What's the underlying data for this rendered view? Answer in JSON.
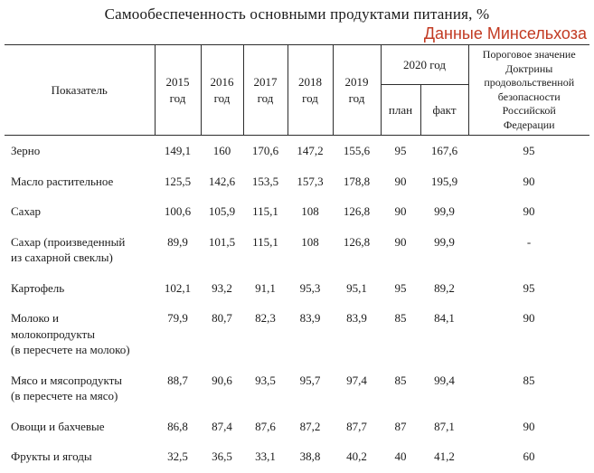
{
  "colors": {
    "source_note_text": "#c23a22",
    "body_text": "#1b1b1b",
    "table_border": "#2d2d2d",
    "background": "#ffffff"
  },
  "chart_data": {
    "type": "table",
    "title": "Самообеспеченность основными продуктами питания, %",
    "source_note": "Данные Минсельхоза",
    "header": {
      "indicator": "Показатель",
      "years": [
        "2015\nгод",
        "2016\nгод",
        "2017\nгод",
        "2018\nгод",
        "2019\nгод"
      ],
      "group_2020": {
        "label": "2020 год",
        "plan": "план",
        "fact": "факт"
      },
      "threshold": "Пороговое значение\nДоктрины\nпродовольственной\nбезопасности\nРоссийской\nФедерации"
    },
    "rows": [
      {
        "label": "Зерно",
        "values": [
          "149,1",
          "160",
          "170,6",
          "147,2",
          "155,6",
          "95",
          "167,6",
          "95"
        ]
      },
      {
        "label": "Масло растительное",
        "values": [
          "125,5",
          "142,6",
          "153,5",
          "157,3",
          "178,8",
          "90",
          "195,9",
          "90"
        ]
      },
      {
        "label": "Сахар",
        "values": [
          "100,6",
          "105,9",
          "115,1",
          "108",
          "126,8",
          "90",
          "99,9",
          "90"
        ]
      },
      {
        "label": "Сахар (произведенный\nиз сахарной свеклы)",
        "values": [
          "89,9",
          "101,5",
          "115,1",
          "108",
          "126,8",
          "90",
          "99,9",
          "-"
        ]
      },
      {
        "label": "Картофель",
        "values": [
          "102,1",
          "93,2",
          "91,1",
          "95,3",
          "95,1",
          "95",
          "89,2",
          "95"
        ]
      },
      {
        "label": "Молоко и\nмолокопродукты\n(в пересчете на молоко)",
        "values": [
          "79,9",
          "80,7",
          "82,3",
          "83,9",
          "83,9",
          "85",
          "84,1",
          "90"
        ]
      },
      {
        "label": "Мясо и мясопродукты\n(в пересчете на мясо)",
        "values": [
          "88,7",
          "90,6",
          "93,5",
          "95,7",
          "97,4",
          "85",
          "99,4",
          "85"
        ]
      },
      {
        "label": "Овощи и бахчевые",
        "values": [
          "86,8",
          "87,4",
          "87,6",
          "87,2",
          "87,7",
          "87",
          "87,1",
          "90"
        ]
      },
      {
        "label": "Фрукты и ягоды",
        "values": [
          "32,5",
          "36,5",
          "33,1",
          "38,8",
          "40,2",
          "40",
          "41,2",
          "60"
        ]
      }
    ]
  }
}
